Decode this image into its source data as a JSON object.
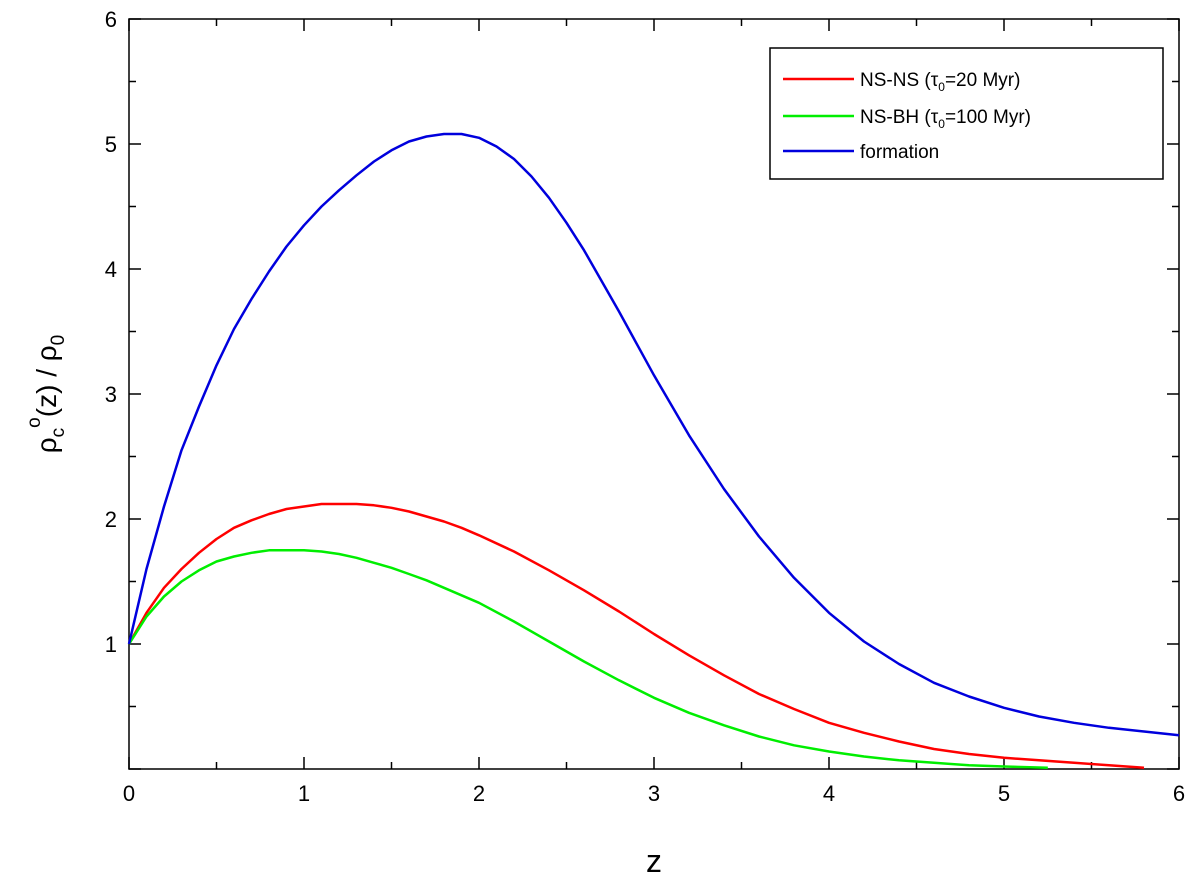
{
  "chart_data": {
    "type": "line",
    "title": "",
    "xlabel": "z",
    "ylabel": {
      "base": "ρ",
      "sub": "c",
      "sup": "o",
      "middle": "(z) / ρ",
      "tail_sub": "0"
    },
    "xlim": [
      0,
      6
    ],
    "ylim": [
      0,
      6
    ],
    "x_ticks": [
      "0",
      "1",
      "2",
      "3",
      "4",
      "5",
      "6"
    ],
    "y_ticks": [
      "1",
      "2",
      "3",
      "4",
      "5",
      "6"
    ],
    "grid": false,
    "legend_position": "top-right",
    "series": [
      {
        "name": "NS-NS",
        "legend": {
          "prefix": "NS-NS (",
          "tau": "τ",
          "tau_sub": "0",
          "suffix": "=20 Myr)"
        },
        "color": "#ff0000",
        "x": [
          0,
          0.1,
          0.2,
          0.3,
          0.4,
          0.5,
          0.6,
          0.7,
          0.8,
          0.9,
          1.0,
          1.1,
          1.2,
          1.3,
          1.4,
          1.5,
          1.6,
          1.7,
          1.8,
          1.9,
          2.0,
          2.2,
          2.4,
          2.6,
          2.8,
          3.0,
          3.2,
          3.4,
          3.6,
          3.8,
          4.0,
          4.2,
          4.4,
          4.6,
          4.8,
          5.0,
          5.2,
          5.4,
          5.6,
          5.8
        ],
        "y": [
          1.0,
          1.25,
          1.45,
          1.6,
          1.73,
          1.84,
          1.93,
          1.99,
          2.04,
          2.08,
          2.1,
          2.12,
          2.12,
          2.12,
          2.11,
          2.09,
          2.06,
          2.02,
          1.98,
          1.93,
          1.87,
          1.74,
          1.59,
          1.43,
          1.26,
          1.08,
          0.91,
          0.75,
          0.6,
          0.48,
          0.37,
          0.29,
          0.22,
          0.16,
          0.12,
          0.09,
          0.07,
          0.05,
          0.03,
          0.01
        ]
      },
      {
        "name": "NS-BH",
        "legend": {
          "prefix": "NS-BH (",
          "tau": "τ",
          "tau_sub": "0",
          "suffix": "=100 Myr)"
        },
        "color": "#00ee00",
        "x": [
          0,
          0.1,
          0.2,
          0.3,
          0.4,
          0.5,
          0.6,
          0.7,
          0.8,
          0.9,
          1.0,
          1.1,
          1.2,
          1.3,
          1.4,
          1.5,
          1.6,
          1.7,
          1.8,
          1.9,
          2.0,
          2.2,
          2.4,
          2.6,
          2.8,
          3.0,
          3.2,
          3.4,
          3.6,
          3.8,
          4.0,
          4.2,
          4.4,
          4.6,
          4.8,
          5.0,
          5.25
        ],
        "y": [
          1.0,
          1.22,
          1.38,
          1.5,
          1.59,
          1.66,
          1.7,
          1.73,
          1.75,
          1.75,
          1.75,
          1.74,
          1.72,
          1.69,
          1.65,
          1.61,
          1.56,
          1.51,
          1.45,
          1.39,
          1.33,
          1.18,
          1.02,
          0.86,
          0.71,
          0.57,
          0.45,
          0.35,
          0.26,
          0.19,
          0.14,
          0.1,
          0.07,
          0.05,
          0.03,
          0.02,
          0.01
        ]
      },
      {
        "name": "formation",
        "legend": {
          "prefix": "formation"
        },
        "color": "#0000dd",
        "x": [
          0,
          0.1,
          0.2,
          0.3,
          0.4,
          0.5,
          0.6,
          0.7,
          0.8,
          0.9,
          1.0,
          1.1,
          1.2,
          1.3,
          1.4,
          1.5,
          1.6,
          1.7,
          1.8,
          1.9,
          2.0,
          2.1,
          2.2,
          2.3,
          2.4,
          2.5,
          2.6,
          2.8,
          3.0,
          3.2,
          3.4,
          3.6,
          3.8,
          4.0,
          4.2,
          4.4,
          4.6,
          4.8,
          5.0,
          5.2,
          5.4,
          5.6,
          5.8,
          6.0
        ],
        "y": [
          1.0,
          1.6,
          2.1,
          2.55,
          2.9,
          3.23,
          3.52,
          3.76,
          3.98,
          4.18,
          4.35,
          4.5,
          4.63,
          4.75,
          4.86,
          4.95,
          5.02,
          5.06,
          5.08,
          5.08,
          5.05,
          4.98,
          4.88,
          4.74,
          4.57,
          4.37,
          4.15,
          3.66,
          3.15,
          2.67,
          2.24,
          1.86,
          1.53,
          1.25,
          1.02,
          0.84,
          0.69,
          0.58,
          0.49,
          0.42,
          0.37,
          0.33,
          0.3,
          0.27
        ]
      }
    ]
  }
}
